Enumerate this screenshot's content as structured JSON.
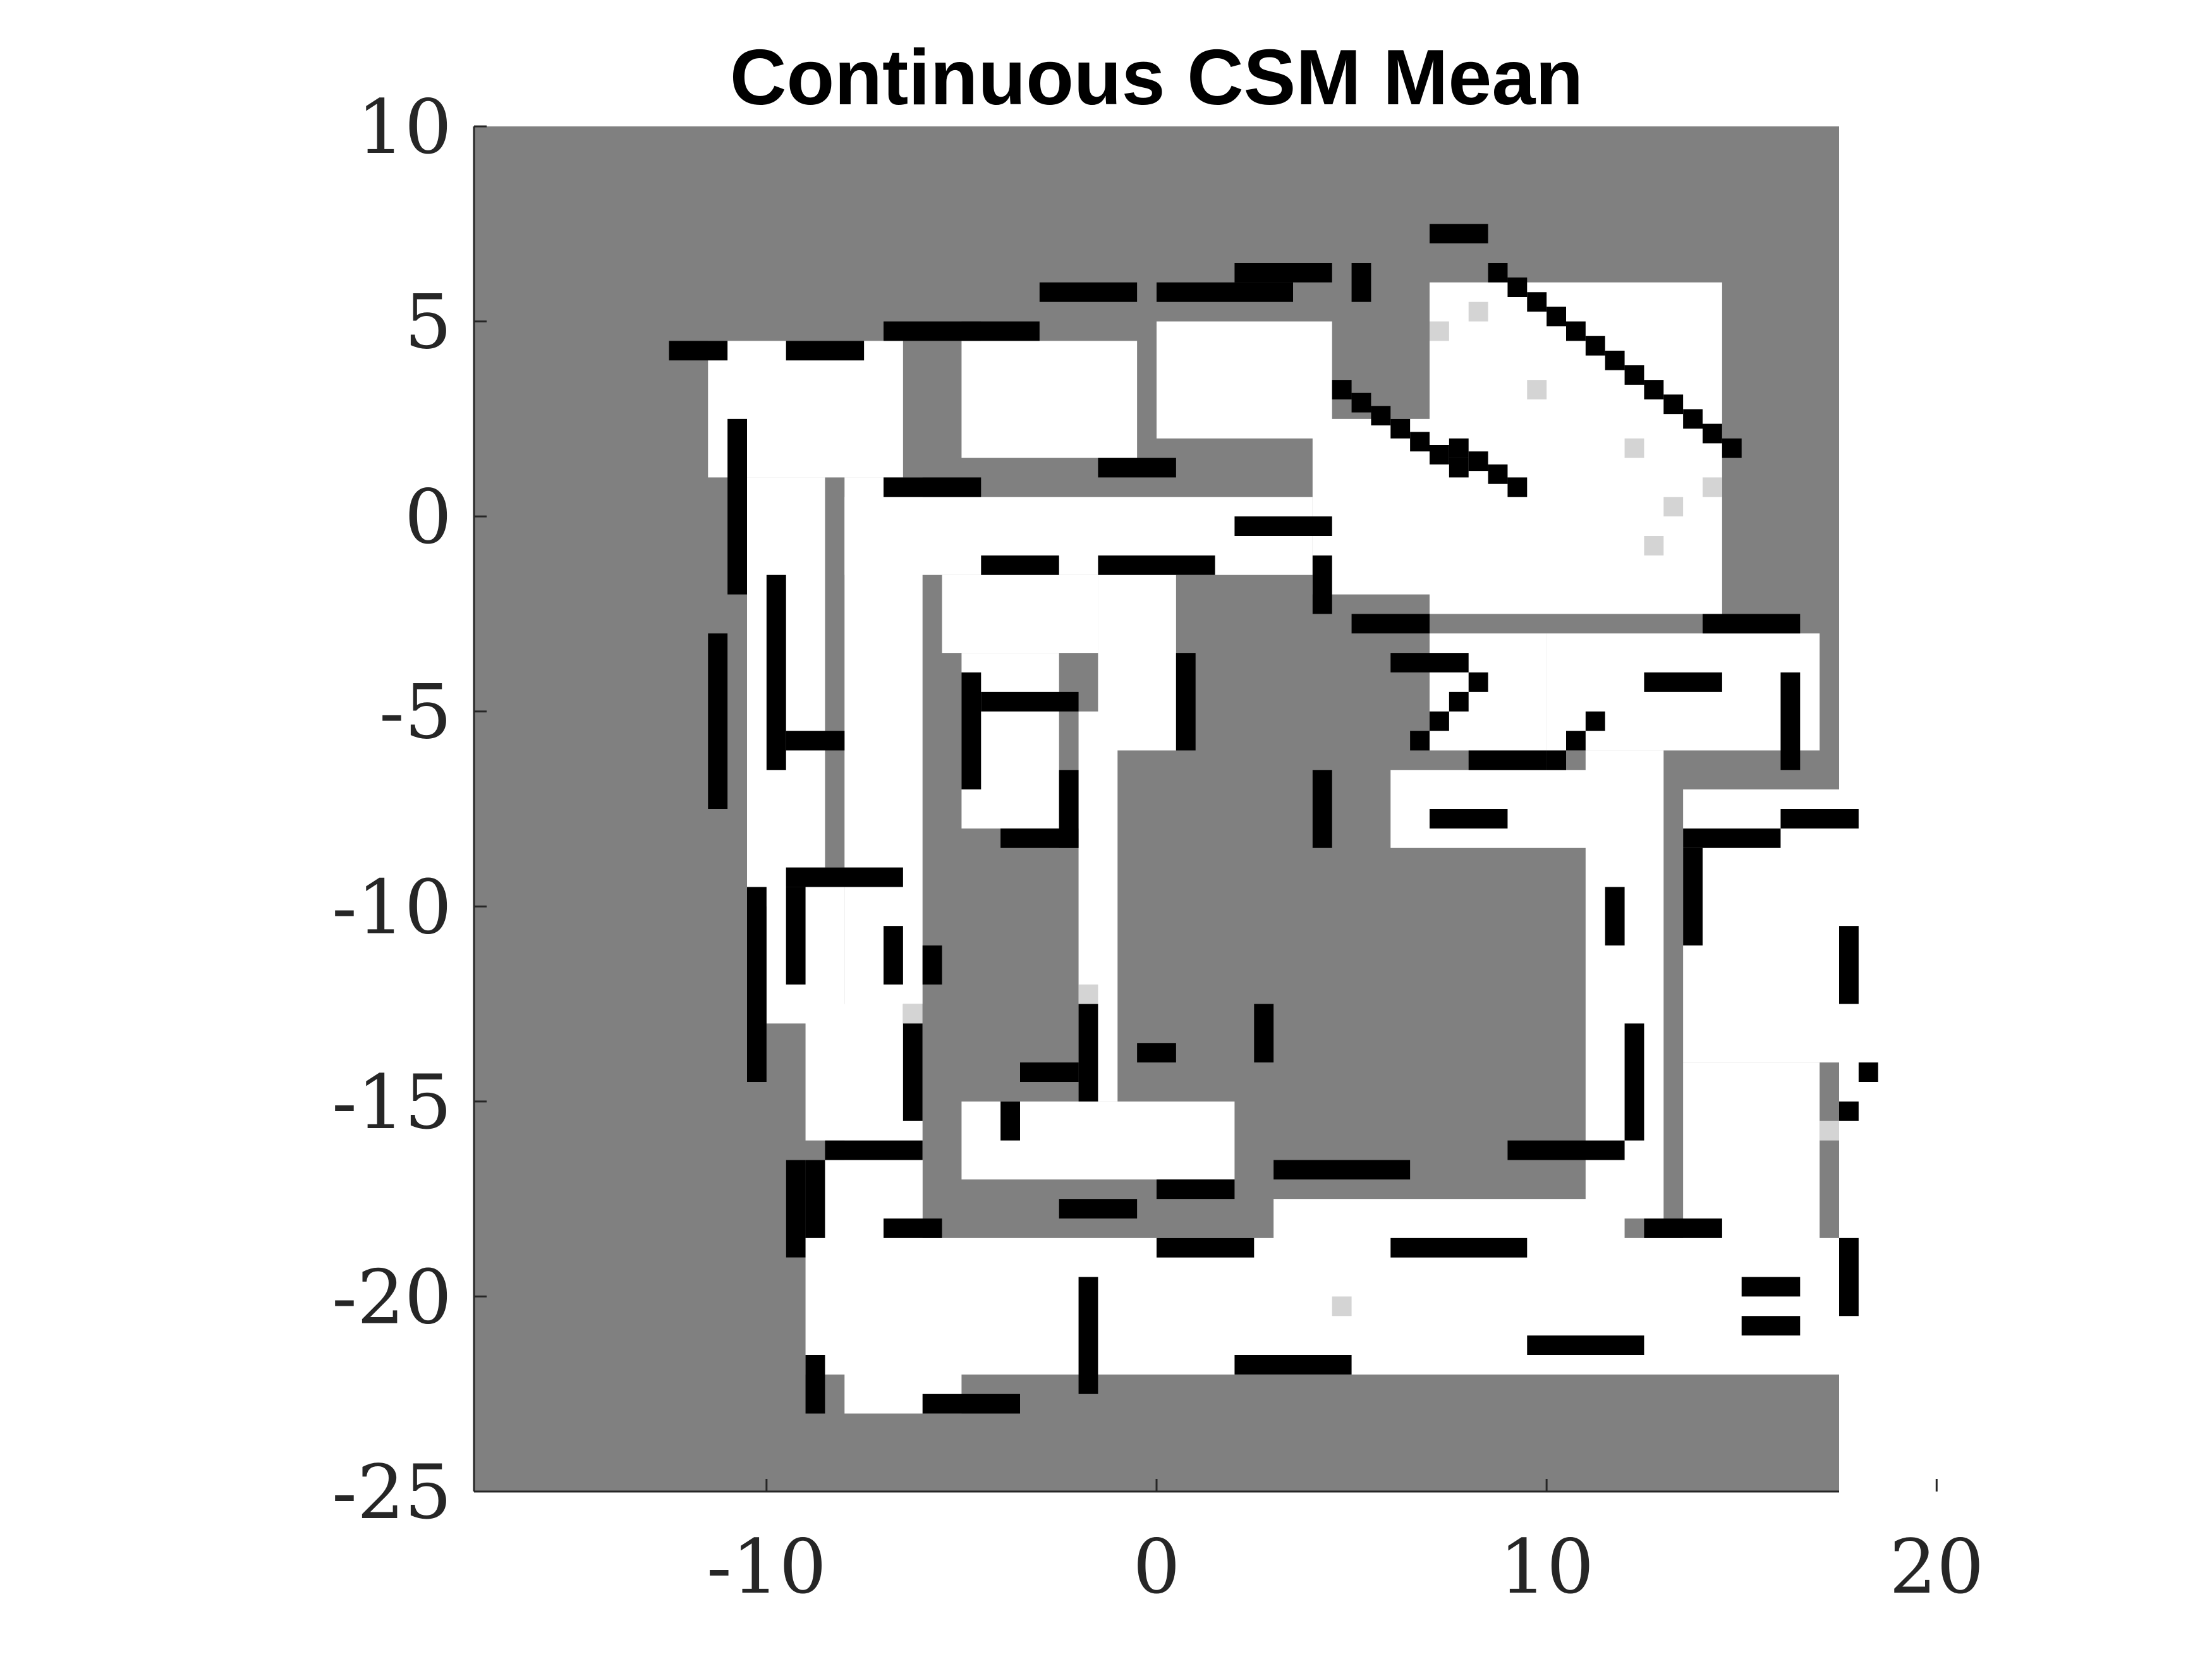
{
  "chart_data": {
    "type": "heatmap",
    "title": "Continuous CSM Mean",
    "xlabel": "",
    "ylabel": "",
    "xlim": [
      -17.5,
      17.5
    ],
    "ylim": [
      -25,
      10
    ],
    "x_ticks": [
      -10,
      0,
      10,
      20
    ],
    "y_ticks": [
      10,
      5,
      0,
      -5,
      -10,
      -15,
      -20,
      -25
    ],
    "x_tick_labels": [
      "-10",
      "0",
      "10",
      "20"
    ],
    "y_tick_labels": [
      "10",
      "5",
      "0",
      "-5",
      "-10",
      "-15",
      "-20",
      "-25"
    ],
    "colormap": "gray",
    "value_range": [
      0,
      1
    ],
    "background_value": 0.5,
    "grid": false,
    "legend": "none",
    "cell_size": 0.5,
    "colors": {
      "unknown": "#808080",
      "free": "#ffffff",
      "occupied": "#000000",
      "axis": "#262626"
    },
    "free_regions": [
      {
        "x": [
          -11.5,
          -6.5
        ],
        "y": [
          1,
          4.5
        ]
      },
      {
        "x": [
          -5,
          -0.5
        ],
        "y": [
          1.5,
          4.5
        ]
      },
      {
        "x": [
          0,
          4.5
        ],
        "y": [
          2,
          5
        ]
      },
      {
        "x": [
          4,
          8
        ],
        "y": [
          -2,
          2.5
        ]
      },
      {
        "x": [
          7,
          14.5
        ],
        "y": [
          -2.5,
          6
        ]
      },
      {
        "x": [
          -10.5,
          -8.5
        ],
        "y": [
          -10,
          1
        ]
      },
      {
        "x": [
          -8,
          -6
        ],
        "y": [
          -21,
          1
        ]
      },
      {
        "x": [
          -8,
          4
        ],
        "y": [
          -1.5,
          0.5
        ]
      },
      {
        "x": [
          -5.5,
          -1.5
        ],
        "y": [
          -3.5,
          -1.5
        ]
      },
      {
        "x": [
          -1.5,
          0.5
        ],
        "y": [
          -6,
          -1.5
        ]
      },
      {
        "x": [
          -5,
          -2.5
        ],
        "y": [
          -8,
          -3.5
        ]
      },
      {
        "x": [
          -2,
          -1
        ],
        "y": [
          -15,
          -5
        ]
      },
      {
        "x": [
          -10,
          -8
        ],
        "y": [
          -13,
          -9
        ]
      },
      {
        "x": [
          -9,
          -6.5
        ],
        "y": [
          -16,
          -12.5
        ]
      },
      {
        "x": [
          -9.5,
          -6
        ],
        "y": [
          -19,
          -16.5
        ]
      },
      {
        "x": [
          -5,
          2
        ],
        "y": [
          -17,
          -15
        ]
      },
      {
        "x": [
          -9,
          18
        ],
        "y": [
          -22,
          -18.5
        ]
      },
      {
        "x": [
          6,
          12
        ],
        "y": [
          -8.5,
          -6.5
        ]
      },
      {
        "x": [
          7,
          10
        ],
        "y": [
          -6,
          -3
        ]
      },
      {
        "x": [
          10,
          17
        ],
        "y": [
          -6,
          -3
        ]
      },
      {
        "x": [
          11,
          13
        ],
        "y": [
          -18,
          -6
        ]
      },
      {
        "x": [
          13.5,
          17.5
        ],
        "y": [
          -14,
          -7
        ]
      },
      {
        "x": [
          13.5,
          17
        ],
        "y": [
          -19,
          -14
        ]
      },
      {
        "x": [
          3,
          12
        ],
        "y": [
          -19,
          -17.5
        ]
      },
      {
        "x": [
          -8,
          -5
        ],
        "y": [
          -23,
          -21
        ]
      }
    ],
    "occupied_segments": [
      {
        "x": [
          -12.5,
          -11.5
        ],
        "y": [
          4
        ]
      },
      {
        "x": [
          -11,
          -11
        ],
        "y": [
          -2,
          2.5
        ]
      },
      {
        "x": [
          -10,
          -10
        ],
        "y": [
          -6.5,
          -1.5
        ]
      },
      {
        "x": [
          -9.5,
          -8
        ],
        "y": [
          4
        ]
      },
      {
        "x": [
          -7,
          -5
        ],
        "y": [
          4.5
        ]
      },
      {
        "x": [
          -5,
          -3.5
        ],
        "y": [
          4.5
        ]
      },
      {
        "x": [
          -3,
          -1
        ],
        "y": [
          5.5
        ]
      },
      {
        "x": [
          0,
          3
        ],
        "y": [
          5.5
        ]
      },
      {
        "x": [
          2,
          4
        ],
        "y": [
          6
        ]
      },
      {
        "x": [
          5,
          5
        ],
        "y": [
          5.5,
          6.5
        ]
      },
      {
        "x": [
          7,
          8
        ],
        "y": [
          7
        ]
      },
      {
        "x": [
          8.5,
          14.5
        ],
        "y": [
          6,
          1.5
        ]
      },
      {
        "x": [
          4.5,
          7.5
        ],
        "y": [
          3,
          1
        ]
      },
      {
        "x": [
          7.5,
          9
        ],
        "y": [
          1.5,
          0.5
        ]
      },
      {
        "x": [
          -7,
          -5
        ],
        "y": [
          0.5
        ]
      },
      {
        "x": [
          -1.5,
          0
        ],
        "y": [
          1
        ]
      },
      {
        "x": [
          2,
          4
        ],
        "y": [
          -0.5
        ]
      },
      {
        "x": [
          -4.5,
          -3
        ],
        "y": [
          -1.5
        ]
      },
      {
        "x": [
          -1.5,
          1
        ],
        "y": [
          -1.5
        ]
      },
      {
        "x": [
          4,
          4
        ],
        "y": [
          -2.5,
          -1
        ]
      },
      {
        "x": [
          5,
          6.5
        ],
        "y": [
          -3
        ]
      },
      {
        "x": [
          6,
          7.5
        ],
        "y": [
          -4
        ]
      },
      {
        "x": [
          12.5,
          14
        ],
        "y": [
          -4.5
        ]
      },
      {
        "x": [
          14,
          16
        ],
        "y": [
          -3
        ]
      },
      {
        "x": [
          16,
          16
        ],
        "y": [
          -6.5,
          -4
        ]
      },
      {
        "x": [
          6.5,
          8
        ],
        "y": [
          -6,
          -4.5
        ]
      },
      {
        "x": [
          8,
          9.5
        ],
        "y": [
          -6.5
        ]
      },
      {
        "x": [
          10,
          11
        ],
        "y": [
          -6.5,
          -5.5
        ]
      },
      {
        "x": [
          7,
          8.5
        ],
        "y": [
          -8
        ]
      },
      {
        "x": [
          4,
          4
        ],
        "y": [
          -8.5,
          -6.5
        ]
      },
      {
        "x": [
          -4.5,
          -2.5
        ],
        "y": [
          -5
        ]
      },
      {
        "x": [
          -5,
          -5
        ],
        "y": [
          -7,
          -4
        ]
      },
      {
        "x": [
          -4,
          -2.5
        ],
        "y": [
          -8.5
        ]
      },
      {
        "x": [
          -2.5,
          -2.5
        ],
        "y": [
          -8.5,
          -6.5
        ]
      },
      {
        "x": [
          0.5,
          0.5
        ],
        "y": [
          -6,
          -3.5
        ]
      },
      {
        "x": [
          -9.5,
          -8.5
        ],
        "y": [
          -6
        ]
      },
      {
        "x": [
          -9.5,
          -7
        ],
        "y": [
          -9.5
        ]
      },
      {
        "x": [
          -9.5,
          -9.5
        ],
        "y": [
          -12,
          -9.5
        ]
      },
      {
        "x": [
          -7,
          -7
        ],
        "y": [
          -12,
          -10.5
        ]
      },
      {
        "x": [
          -6,
          -6
        ],
        "y": [
          -12,
          -11
        ]
      },
      {
        "x": [
          -6.5,
          -6.5
        ],
        "y": [
          -15.5,
          -12.5
        ]
      },
      {
        "x": [
          -8.5,
          -6.5
        ],
        "y": [
          -16.5
        ]
      },
      {
        "x": [
          -9,
          -9
        ],
        "y": [
          -18.5,
          -16.5
        ]
      },
      {
        "x": [
          -7,
          -6
        ],
        "y": [
          -18.5
        ]
      },
      {
        "x": [
          -2,
          -2
        ],
        "y": [
          -15,
          -12.5
        ]
      },
      {
        "x": [
          -0.5,
          0
        ],
        "y": [
          -14
        ]
      },
      {
        "x": [
          2.5,
          2.5
        ],
        "y": [
          -14,
          -12.5
        ]
      },
      {
        "x": [
          -3.5,
          -2.5
        ],
        "y": [
          -14.5
        ]
      },
      {
        "x": [
          -4,
          -4
        ],
        "y": [
          -16,
          -15
        ]
      },
      {
        "x": [
          -2.5,
          -1
        ],
        "y": [
          -18
        ]
      },
      {
        "x": [
          0,
          1.5
        ],
        "y": [
          -17.5
        ]
      },
      {
        "x": [
          3,
          6
        ],
        "y": [
          -17
        ]
      },
      {
        "x": [
          9,
          11.5
        ],
        "y": [
          -16.5
        ]
      },
      {
        "x": [
          12,
          12
        ],
        "y": [
          -16,
          -13
        ]
      },
      {
        "x": [
          11.5,
          11.5
        ],
        "y": [
          -11,
          -9.5
        ]
      },
      {
        "x": [
          13.5,
          15.5
        ],
        "y": [
          -8.5
        ]
      },
      {
        "x": [
          16,
          17.5
        ],
        "y": [
          -8
        ]
      },
      {
        "x": [
          13.5,
          13.5
        ],
        "y": [
          -11,
          -8.5
        ]
      },
      {
        "x": [
          17.5,
          17.5
        ],
        "y": [
          -12.5,
          -10.5
        ]
      },
      {
        "x": [
          17.5,
          18
        ],
        "y": [
          -15.5,
          -14.5
        ]
      },
      {
        "x": [
          17.5,
          17.5
        ],
        "y": [
          -20.5,
          -18.5
        ]
      },
      {
        "x": [
          0,
          2
        ],
        "y": [
          -19
        ]
      },
      {
        "x": [
          6,
          9
        ],
        "y": [
          -19
        ]
      },
      {
        "x": [
          12.5,
          14
        ],
        "y": [
          -18.5
        ]
      },
      {
        "x": [
          15,
          16
        ],
        "y": [
          -20
        ]
      },
      {
        "x": [
          9.5,
          12
        ],
        "y": [
          -21.5
        ]
      },
      {
        "x": [
          15,
          16
        ],
        "y": [
          -21
        ]
      },
      {
        "x": [
          2,
          4.5
        ],
        "y": [
          -22
        ]
      },
      {
        "x": [
          -6,
          -4
        ],
        "y": [
          -23
        ]
      },
      {
        "x": [
          -9,
          -9
        ],
        "y": [
          -23,
          -21.5
        ]
      },
      {
        "x": [
          -2,
          -2
        ],
        "y": [
          -22.5,
          -19.5
        ]
      },
      {
        "x": [
          -11.5,
          -11.5
        ],
        "y": [
          -7.5,
          -3
        ]
      },
      {
        "x": [
          -10.5,
          -10.5
        ],
        "y": [
          -14.5,
          -9.5
        ]
      },
      {
        "x": [
          -9.5,
          -9.5
        ],
        "y": [
          -19,
          -16.5
        ]
      }
    ],
    "light_gray_patches": [
      {
        "x": 7,
        "y": 4.5
      },
      {
        "x": 8,
        "y": 5
      },
      {
        "x": 9.5,
        "y": 3
      },
      {
        "x": 12,
        "y": 1.5
      },
      {
        "x": 13,
        "y": 0
      },
      {
        "x": 14,
        "y": 0.5
      },
      {
        "x": 12.5,
        "y": -1
      },
      {
        "x": -2,
        "y": -12.5
      },
      {
        "x": -6.5,
        "y": -13
      },
      {
        "x": 17,
        "y": -16
      },
      {
        "x": 4.5,
        "y": -20.5
      }
    ]
  }
}
